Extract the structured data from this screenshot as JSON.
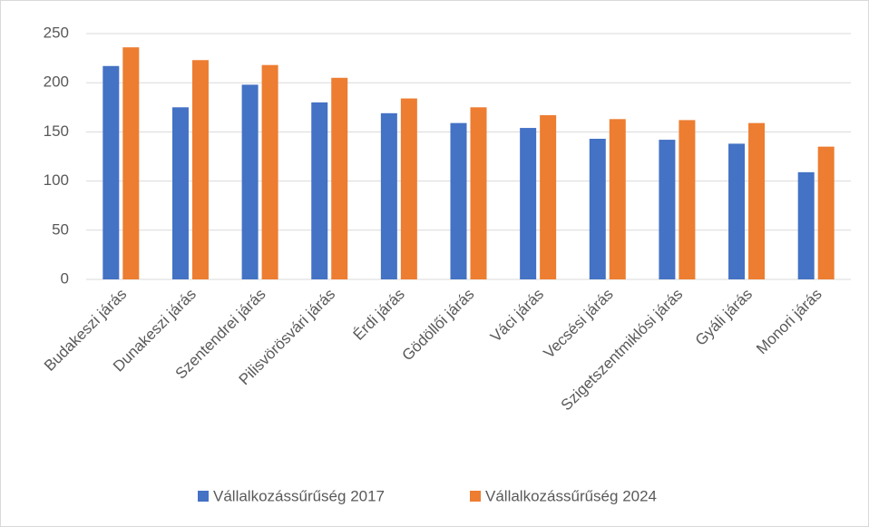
{
  "chart_data": {
    "type": "bar",
    "categories": [
      "Budakeszi járás",
      "Dunakeszi járás",
      "Szentendrei járás",
      "Pilisvörösvári járás",
      "Érdi járás",
      "Gödöllői járás",
      "Váci járás",
      "Vecsési járás",
      "Szigetszentmiklósi járás",
      "Gyáli járás",
      "Monori járás"
    ],
    "series": [
      {
        "name": "Vállalkozássűrűség 2017",
        "color": "#4472c4",
        "values": [
          217,
          175,
          198,
          180,
          169,
          159,
          154,
          143,
          142,
          138,
          109
        ]
      },
      {
        "name": "Vállalkozássűrűség 2024",
        "color": "#ed7d31",
        "values": [
          236,
          223,
          218,
          205,
          184,
          175,
          167,
          163,
          162,
          159,
          135
        ]
      }
    ],
    "ylim": [
      0,
      250
    ],
    "yticks": [
      0,
      50,
      100,
      150,
      200,
      250
    ],
    "grid": true,
    "legend": "bottom"
  }
}
